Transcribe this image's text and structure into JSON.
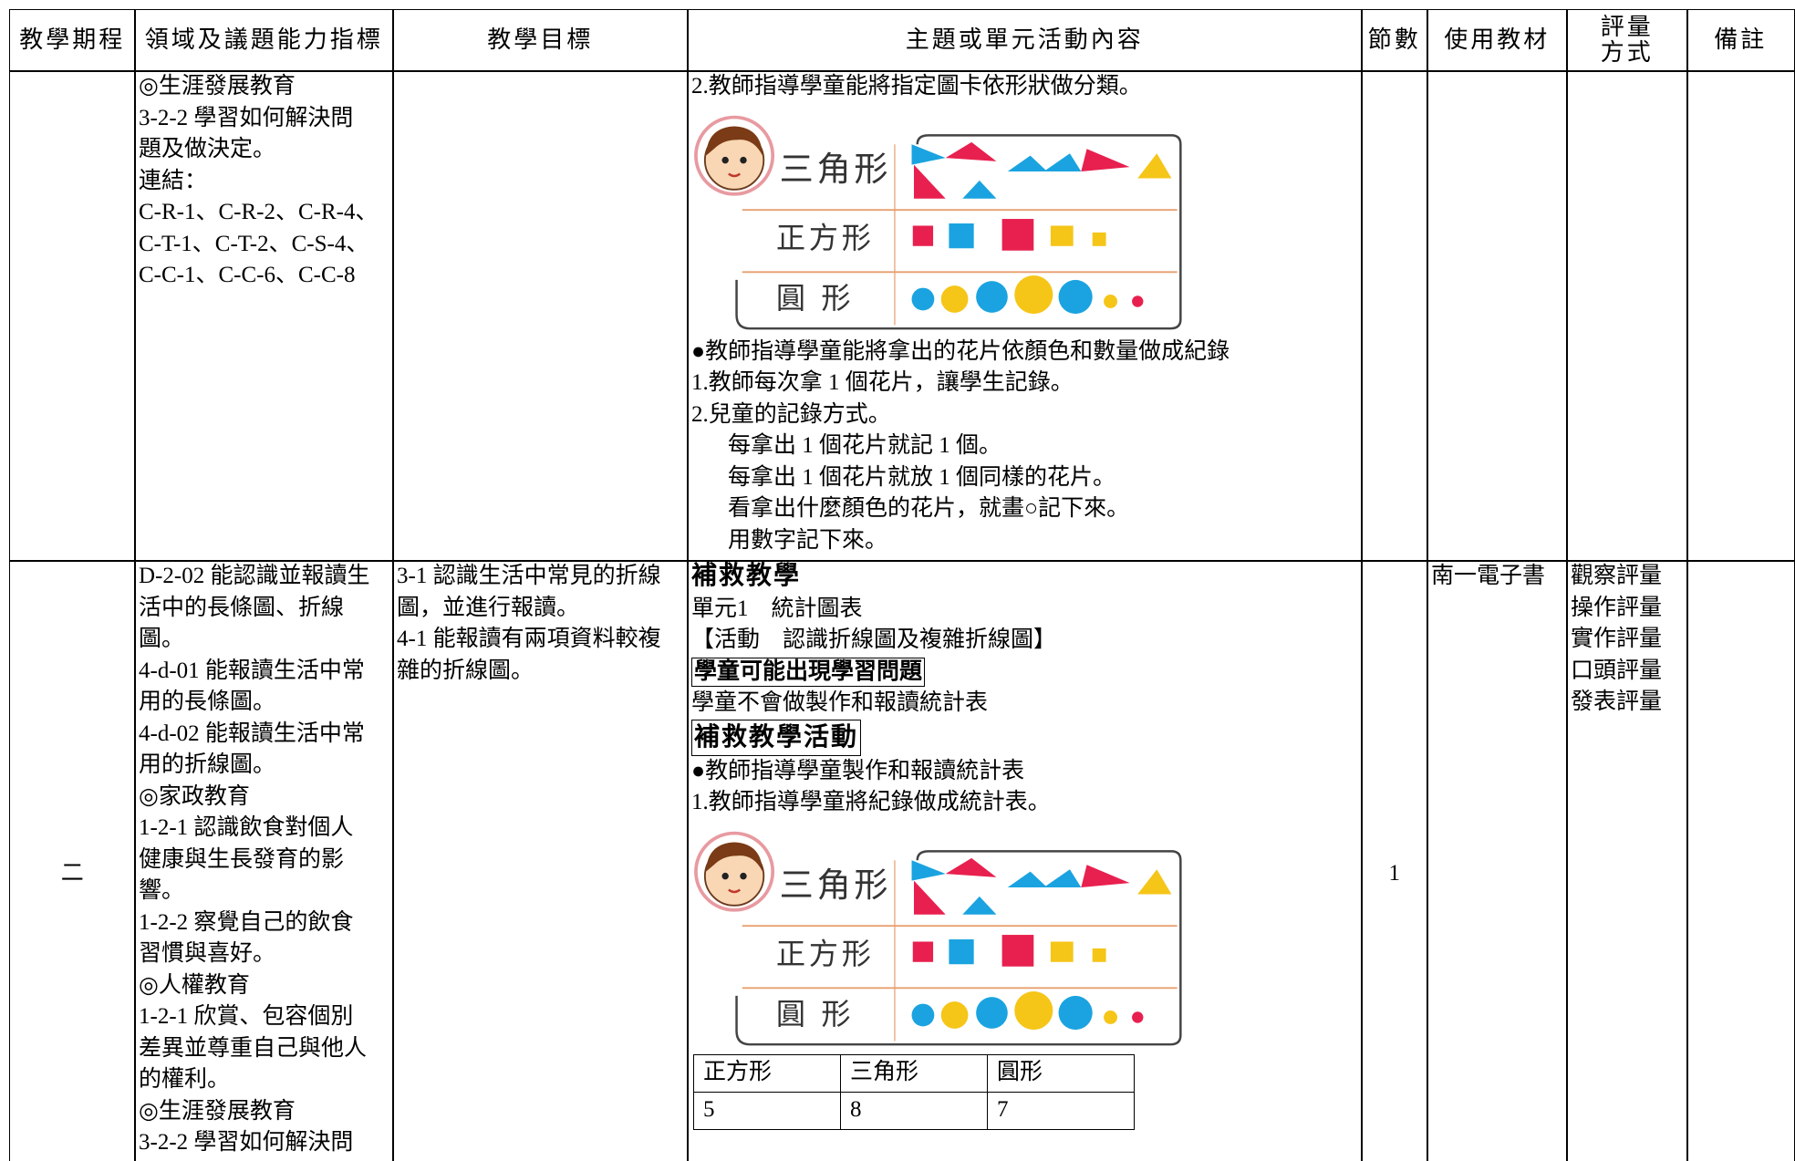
{
  "header": {
    "columns": [
      "教學期程",
      "領域及議題能力指標",
      "教學目標",
      "主題或單元活動內容",
      "節數",
      "使用教材",
      "評量\n方式",
      "備註"
    ]
  },
  "rows": [
    {
      "indicators": [
        "◎生涯發展教育",
        "3-2-2 學習如何解決問",
        "題及做決定。",
        "連結：",
        "C-R-1、C-R-2、C-R-4、",
        "C-T-1、C-T-2、C-S-4、",
        "C-C-1、C-C-6、C-C-8"
      ],
      "content": [
        {
          "text": "2.教師指導學童能將指定圖卡依形狀做分類。"
        },
        {
          "figure": [
            "三角形",
            "正方形",
            "圓形"
          ]
        },
        {
          "text": "●教師指導學童能將拿出的花片依顏色和數量做成紀錄"
        },
        {
          "text": "1.教師每次拿 1 個花片，讓學生記錄。"
        },
        {
          "text": "2.兒童的記錄方式。"
        },
        {
          "indent": "每拿出 1 個花片就記 1 個。"
        },
        {
          "indent": "每拿出 1 個花片就放 1 個同樣的花片。"
        },
        {
          "indent": "看拿出什麼顏色的花片，就畫○記下來。"
        },
        {
          "indent": "用數字記下來。"
        }
      ]
    },
    {
      "period": "二",
      "indicators": [
        "D-2-02 能認識並報讀生",
        "活中的長條圖、折線",
        "圖。",
        "4-d-01 能報讀生活中常",
        "用的長條圖。",
        "4-d-02 能報讀生活中常",
        "用的折線圖。",
        "◎家政教育",
        "1-2-1 認識飲食對個人",
        "健康與生長發育的影",
        "響。",
        "1-2-2 察覺自己的飲食",
        "習慣與喜好。",
        "◎人權教育",
        "1-2-1 欣賞、包容個別",
        "差異並尊重自己與他人",
        "的權利。",
        "◎生涯發展教育",
        "3-2-2 學習如何解決問"
      ],
      "goals": [
        "3-1 認識生活中常見的折線",
        "圖，並進行報讀。",
        "4-1 能報讀有兩項資料較複",
        "雜的折線圖。"
      ],
      "content": [
        {
          "heading": "補救教學"
        },
        {
          "text": "單元1　統計圖表"
        },
        {
          "text": "【活動　認識折線圖及複雜折線圖】"
        },
        {
          "boxed": "學童可能出現學習問題"
        },
        {
          "text": "學童不會做製作和報讀統計表"
        },
        {
          "boxed_heading": "補救教學活動"
        },
        {
          "text": "●教師指導學童製作和報讀統計表"
        },
        {
          "text": "1.教師指導學童將紀錄做成統計表。"
        },
        {
          "figure": [
            "三角形",
            "正方形",
            "圓形"
          ]
        },
        {
          "table": {
            "header": [
              "正方形",
              "三角形",
              "圓形"
            ],
            "rows": [
              [
                5,
                8,
                7
              ]
            ]
          }
        }
      ],
      "sessions": "1",
      "materials": "南一電子書",
      "assessment": [
        "觀察評量",
        "操作評量",
        "實作評量",
        "口頭評量",
        "發表評量"
      ]
    }
  ]
}
